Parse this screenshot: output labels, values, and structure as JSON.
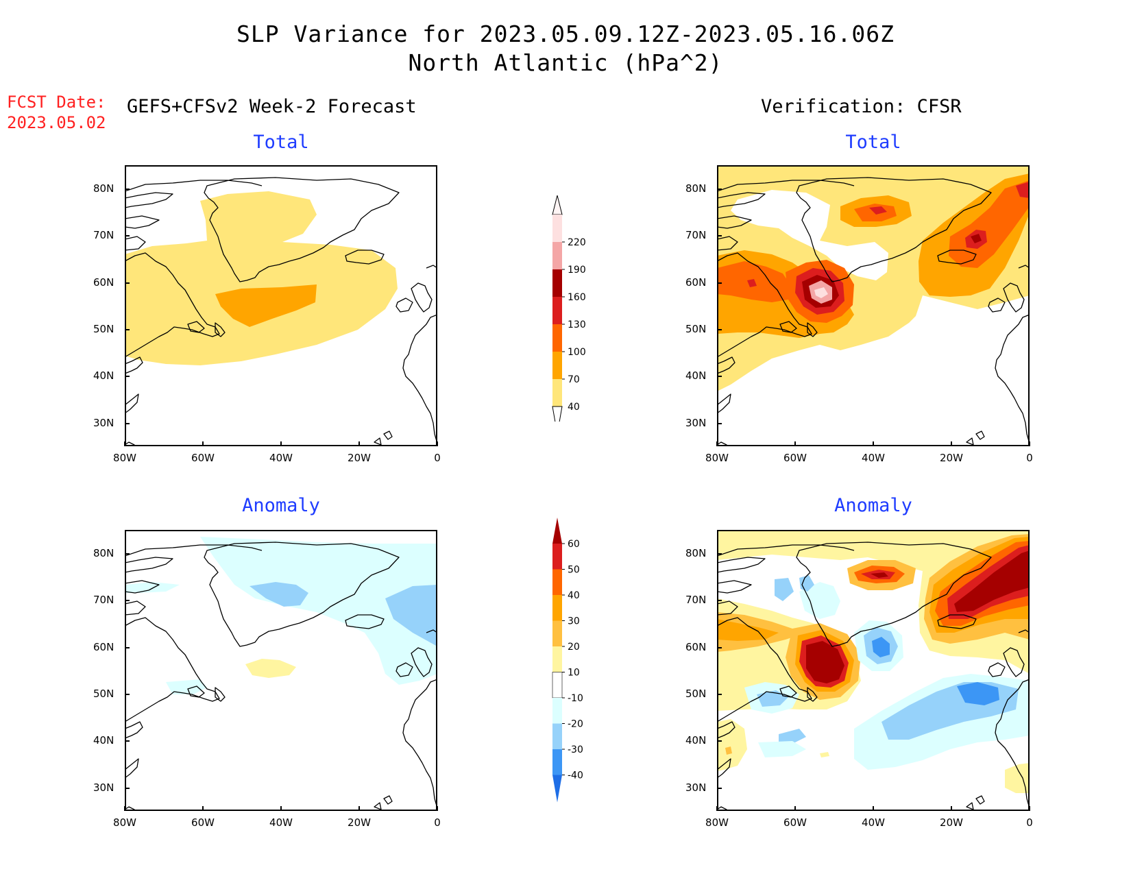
{
  "header": {
    "title_line1": "SLP Variance for 2023.05.09.12Z-2023.05.16.06Z",
    "title_line2": "North Atlantic (hPa^2)",
    "fcst_label": "FCST Date:",
    "fcst_date": "2023.05.02",
    "left_subtitle": "GEFS+CFSv2 Week-2 Forecast",
    "right_subtitle": "Verification: CFSR"
  },
  "panels": [
    {
      "id": "fcst-total",
      "title": "Total"
    },
    {
      "id": "verif-total",
      "title": "Total"
    },
    {
      "id": "fcst-anomaly",
      "title": "Anomaly"
    },
    {
      "id": "verif-anomaly",
      "title": "Anomaly"
    }
  ],
  "axes": {
    "lon_labels": [
      "80W",
      "60W",
      "40W",
      "20W",
      "0"
    ],
    "lat_labels": [
      "80N",
      "70N",
      "60N",
      "50N",
      "40N",
      "30N"
    ]
  },
  "colorbars": {
    "total": {
      "levels": [
        "220",
        "190",
        "160",
        "130",
        "100",
        "70",
        "40"
      ],
      "colors": [
        "#fde0e0",
        "#f4a6a6",
        "#a50000",
        "#dc1e1e",
        "#ff6600",
        "#ffa500",
        "#ffe67a"
      ]
    },
    "anomaly": {
      "levels": [
        "60",
        "50",
        "40",
        "30",
        "20",
        "10",
        "-10",
        "-20",
        "-30",
        "-40"
      ],
      "colors": [
        "#a50000",
        "#dc1e1e",
        "#ff6600",
        "#ffa500",
        "#ffc040",
        "#fff5a0",
        "#ffffff",
        "#dcffff",
        "#96d2fa",
        "#3c96f5",
        "#1e6ee6"
      ]
    }
  },
  "chart_data": {
    "type": "heatmap",
    "title": "SLP Variance for 2023.05.09.12Z-2023.05.16.06Z North Atlantic (hPa^2)",
    "xlim": [
      "80W",
      "0"
    ],
    "ylim": [
      "25N",
      "85N"
    ]
  }
}
